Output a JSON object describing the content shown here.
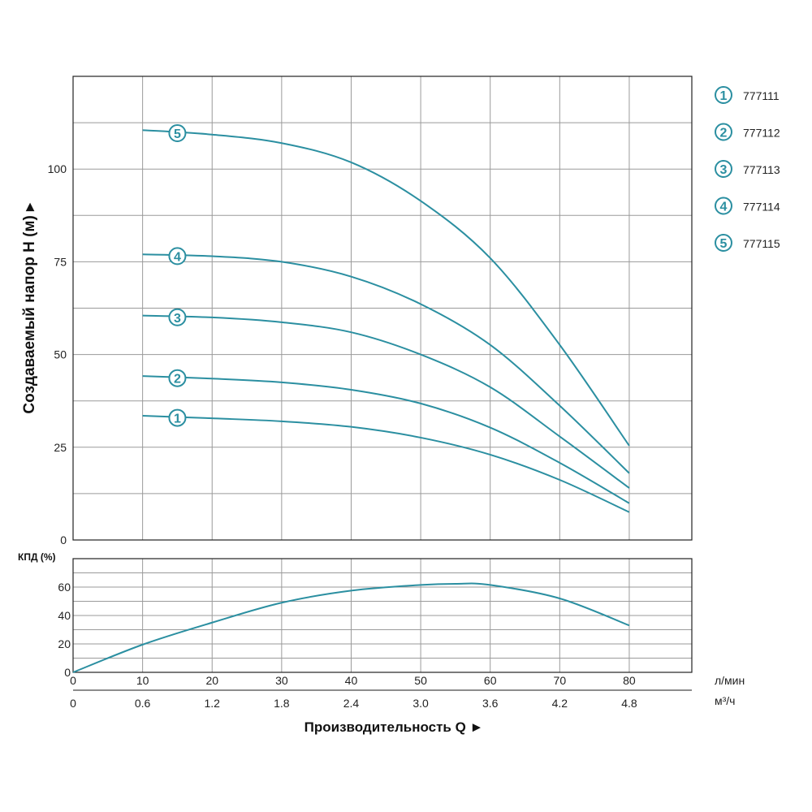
{
  "chart_data": [
    {
      "type": "line",
      "ylabel": "Создаваемый напор H (м) ▸",
      "xlim": [
        0,
        89
      ],
      "ylim": [
        0,
        125
      ],
      "yticks": [
        0,
        25,
        50,
        75,
        100
      ],
      "grid": true,
      "legend_placement": "right",
      "x": [
        10,
        20,
        30,
        40,
        50,
        60,
        70,
        80
      ],
      "series": [
        {
          "name": "777111",
          "marker": "1",
          "values": [
            33.5,
            32.8,
            32,
            30.5,
            27.6,
            23,
            16.2,
            7.5
          ]
        },
        {
          "name": "777112",
          "marker": "2",
          "values": [
            44.2,
            43.5,
            42.5,
            40.5,
            36.8,
            30.3,
            20.8,
            9.9
          ]
        },
        {
          "name": "777113",
          "marker": "3",
          "values": [
            60.5,
            60,
            58.7,
            56,
            50,
            41.2,
            27.9,
            14
          ]
        },
        {
          "name": "777114",
          "marker": "4",
          "values": [
            77,
            76.5,
            75,
            71,
            63.6,
            52.6,
            36.2,
            18
          ]
        },
        {
          "name": "777115",
          "marker": "5",
          "values": [
            110.5,
            109.3,
            107,
            101.8,
            91.4,
            76,
            52.6,
            25.4
          ]
        }
      ]
    },
    {
      "type": "line",
      "ylabel": "КПД (%)",
      "xlabel": "Производительность Q ►",
      "xlim": [
        0,
        89
      ],
      "ylim": [
        0,
        80
      ],
      "yticks": [
        0,
        20,
        40,
        60
      ],
      "grid": true,
      "x": [
        0,
        10,
        20,
        30,
        40,
        50,
        55,
        60,
        70,
        80
      ],
      "series": [
        {
          "values": [
            0,
            19.5,
            35,
            49,
            57.5,
            61.5,
            62.3,
            61.5,
            52,
            33
          ]
        }
      ],
      "xticks_primary": {
        "unit": "л/мин",
        "labels": [
          "0",
          "10",
          "20",
          "30",
          "40",
          "50",
          "60",
          "70",
          "80"
        ]
      },
      "xticks_secondary": {
        "unit": "м³/ч",
        "labels": [
          "0",
          "0.6",
          "1.2",
          "1.8",
          "2.4",
          "3.0",
          "3.6",
          "4.2",
          "4.8"
        ]
      }
    }
  ],
  "colors": {
    "curve": "#2b8fa1",
    "grid": "#9a9a9a",
    "axis": "#222222"
  }
}
